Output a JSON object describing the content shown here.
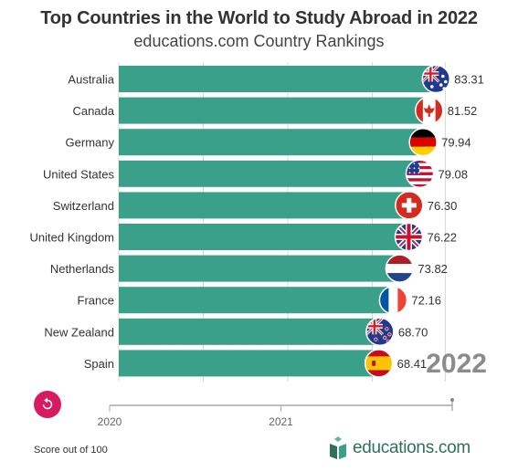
{
  "header": {
    "title": "Top Countries in the World to Study Abroad in 2022",
    "subtitle": "educations.com Country Rankings"
  },
  "footer": {
    "note": "Score out of 100",
    "logo_text": "educations.com"
  },
  "colors": {
    "bar": "#3aa08a",
    "bar_dark": "#2f8c78",
    "accent": "#d81b60",
    "year_text": "#8c8c8c"
  },
  "chart_data": {
    "type": "bar",
    "orientation": "horizontal",
    "title": "Top Countries in the World to Study Abroad in 2022",
    "subtitle": "educations.com Country Rankings",
    "categories": [
      "Australia",
      "Canada",
      "Germany",
      "United States",
      "Switzerland",
      "United Kingdom",
      "Netherlands",
      "France",
      "New Zealand",
      "Spain"
    ],
    "values": [
      83.31,
      81.52,
      79.94,
      79.08,
      76.3,
      76.22,
      73.82,
      72.16,
      68.7,
      68.41
    ],
    "value_labels": [
      "83.31",
      "81.52",
      "79.94",
      "79.08",
      "76.30",
      "76.22",
      "73.82",
      "72.16",
      "68.70",
      "68.41"
    ],
    "flags": [
      "australia-flag",
      "canada-flag",
      "germany-flag",
      "usa-flag",
      "switzerland-flag",
      "uk-flag",
      "netherlands-flag",
      "france-flag",
      "new-zealand-flag",
      "spain-flag"
    ],
    "year_label": "2022",
    "timeline": {
      "ticks": [
        "2020",
        "2021"
      ],
      "range": [
        2020,
        2022
      ],
      "current": 2022
    },
    "xlim": [
      0,
      88
    ],
    "grid": true
  }
}
